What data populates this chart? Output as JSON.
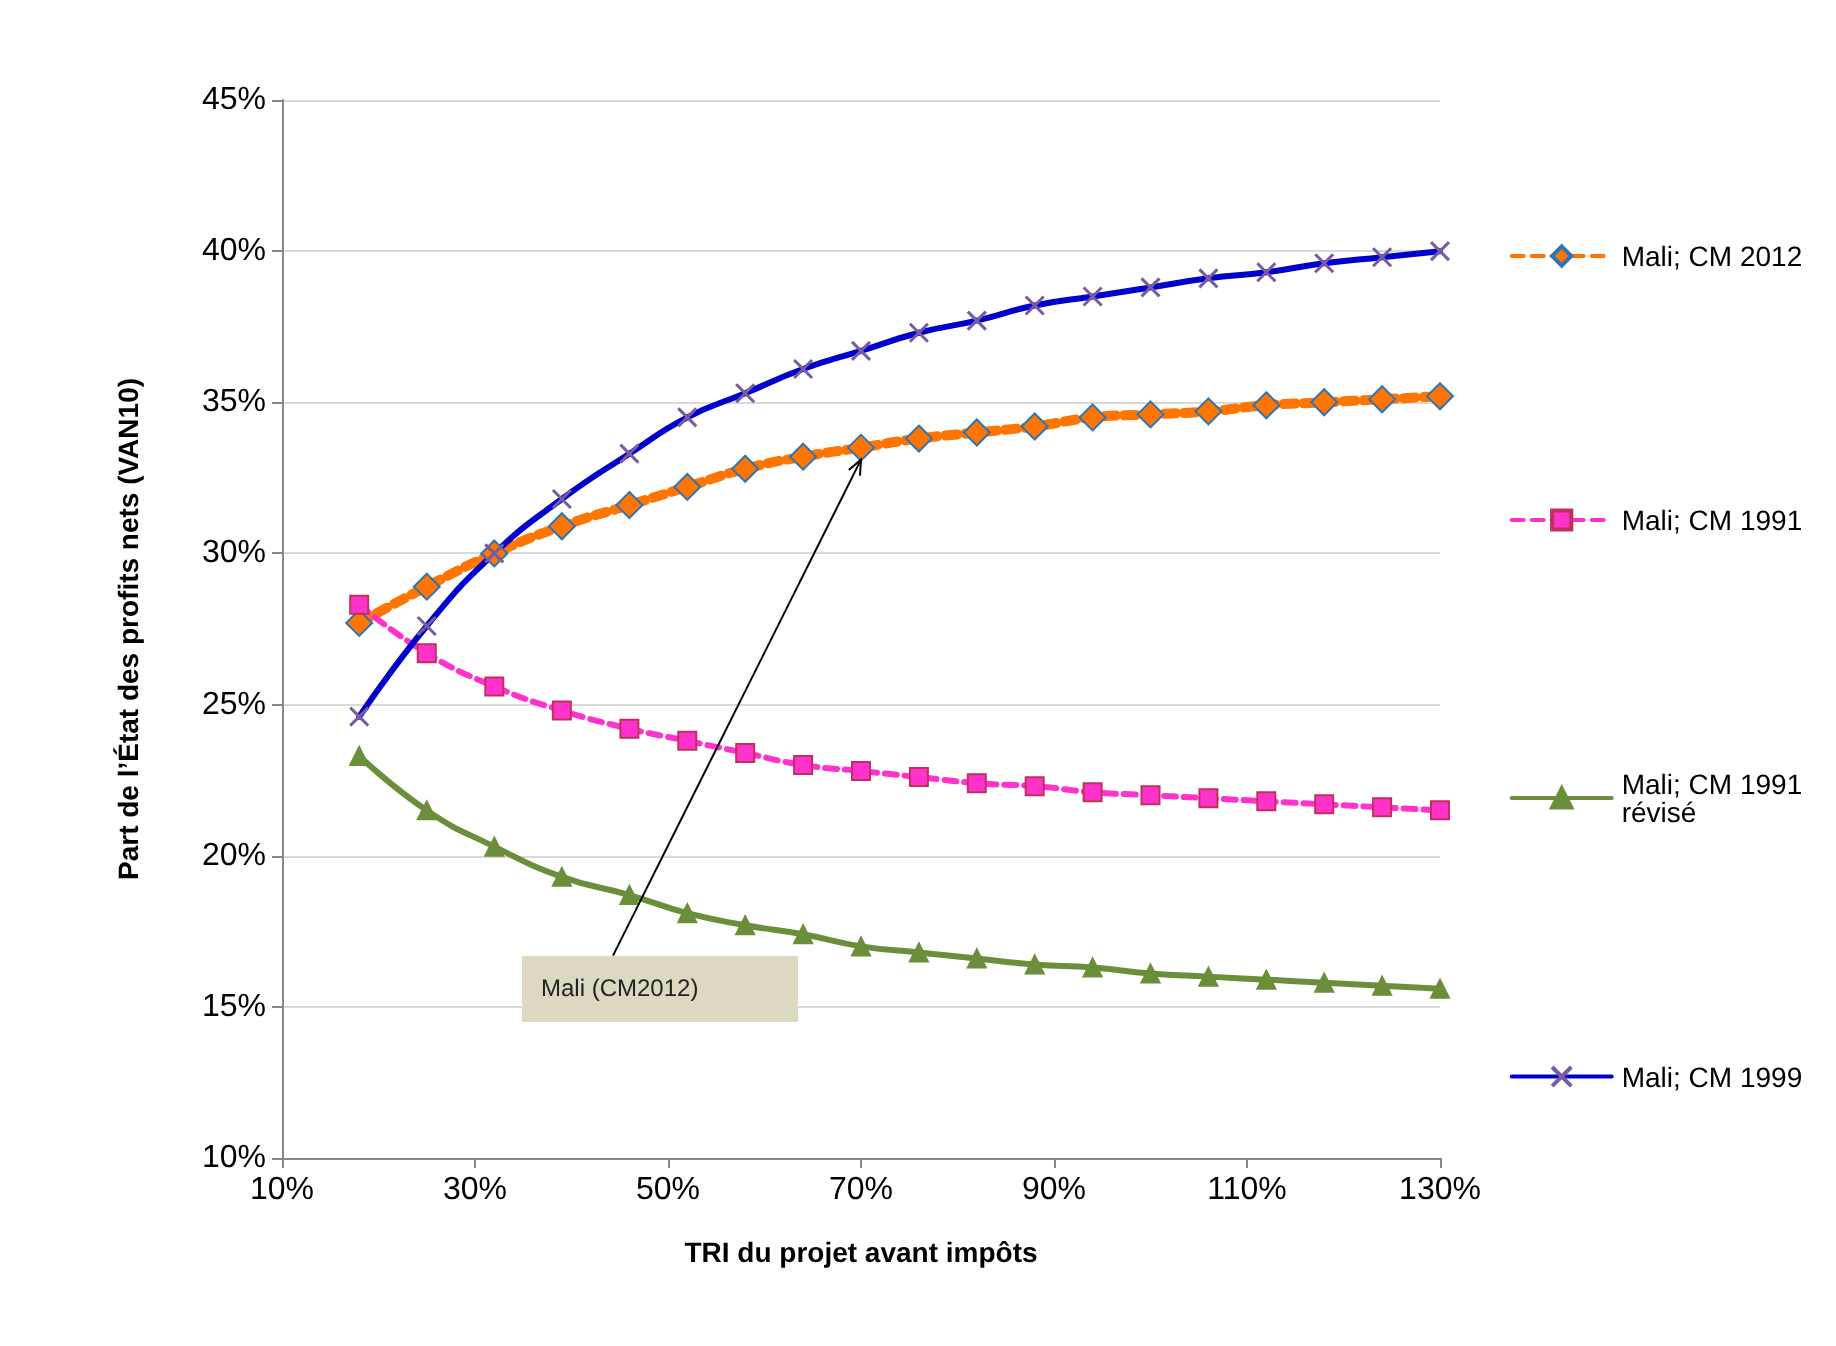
{
  "chart_data": {
    "type": "line",
    "xlabel": "TRI du projet avant impôts",
    "ylabel": "Part de l’État des profits nets (VAN10)",
    "x": [
      18,
      25,
      32,
      39,
      46,
      52,
      58,
      64,
      70,
      76,
      82,
      88,
      94,
      100,
      106,
      112,
      118,
      124,
      130
    ],
    "series": [
      {
        "name": "Mali; CM 2012",
        "color": "#ff7500",
        "marker": "diamond",
        "line_style": "dashed",
        "values": [
          27.7,
          28.9,
          30.0,
          30.9,
          31.6,
          32.2,
          32.8,
          33.2,
          33.5,
          33.8,
          34.0,
          34.2,
          34.5,
          34.6,
          34.7,
          34.9,
          35.0,
          35.1,
          35.2
        ]
      },
      {
        "name": "Mali; CM 1991",
        "color": "#ff33cc",
        "marker": "square",
        "line_style": "dashed",
        "values": [
          28.3,
          26.7,
          25.6,
          24.8,
          24.2,
          23.8,
          23.4,
          23.0,
          22.8,
          22.6,
          22.4,
          22.3,
          22.1,
          22.0,
          21.9,
          21.8,
          21.7,
          21.6,
          21.5
        ]
      },
      {
        "name": "Mali; CM 1991 révisé",
        "color": "#6b8e3a",
        "marker": "triangle",
        "line_style": "solid",
        "values": [
          23.3,
          21.5,
          20.3,
          19.3,
          18.7,
          18.1,
          17.7,
          17.4,
          17.0,
          16.8,
          16.6,
          16.4,
          16.3,
          16.1,
          16.0,
          15.9,
          15.8,
          15.7,
          15.6
        ]
      },
      {
        "name": "Mali; CM 1999",
        "color": "#0000cc",
        "marker": "cross",
        "line_style": "solid",
        "values": [
          24.6,
          27.6,
          30.0,
          31.8,
          33.3,
          34.5,
          35.3,
          36.1,
          36.7,
          37.3,
          37.7,
          38.2,
          38.5,
          38.8,
          39.1,
          39.3,
          39.6,
          39.8,
          40.0
        ]
      }
    ],
    "xlim": [
      10,
      130
    ],
    "xticks": [
      {
        "value": 10,
        "label": "10%"
      },
      {
        "value": 30,
        "label": "30%"
      },
      {
        "value": 50,
        "label": "50%"
      },
      {
        "value": 70,
        "label": "70%"
      },
      {
        "value": 90,
        "label": "90%"
      },
      {
        "value": 110,
        "label": "110%"
      },
      {
        "value": 130,
        "label": "130%"
      }
    ],
    "ylim": [
      10,
      45
    ],
    "yticks": [
      {
        "value": 10,
        "label": "10%"
      },
      {
        "value": 15,
        "label": "15%"
      },
      {
        "value": 20,
        "label": "20%"
      },
      {
        "value": 25,
        "label": "25%"
      },
      {
        "value": 30,
        "label": "30%"
      },
      {
        "value": 35,
        "label": "35%"
      },
      {
        "value": 40,
        "label": "40%"
      },
      {
        "value": 45,
        "label": "45%"
      }
    ],
    "grid": "y",
    "legend": "right",
    "annotations": [
      {
        "text": "Mali (CM2012)",
        "x": 70,
        "y": 33.5
      }
    ]
  }
}
